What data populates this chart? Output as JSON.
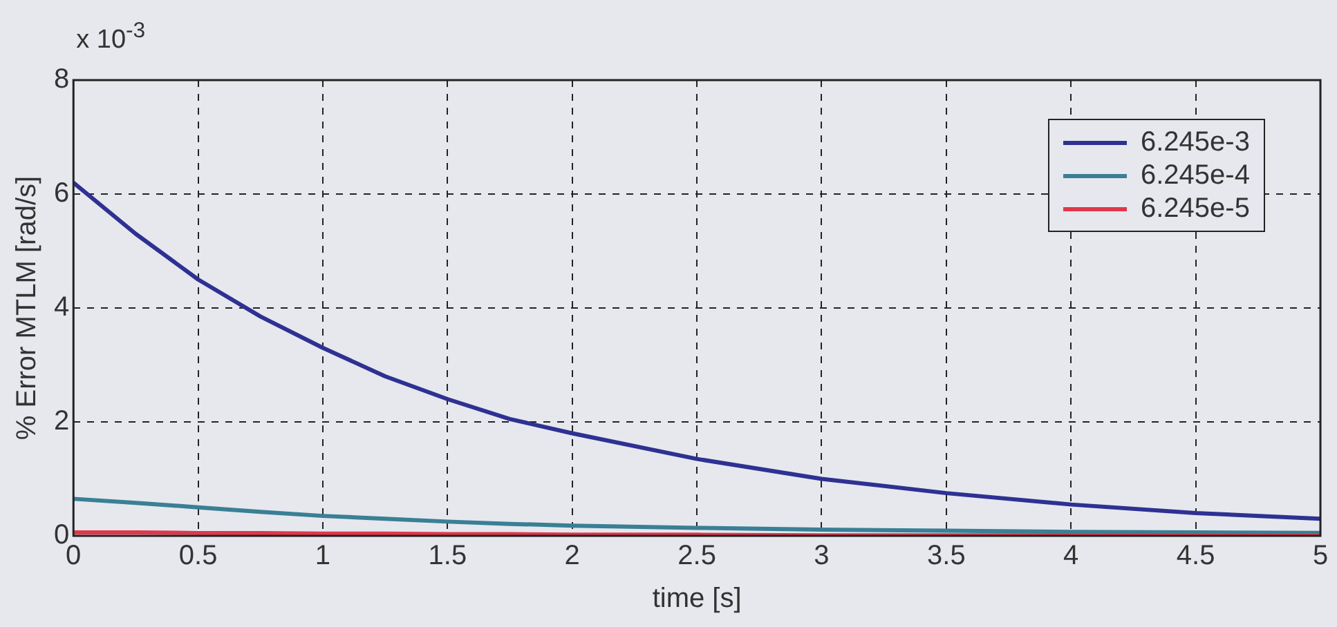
{
  "chart_data": {
    "type": "line",
    "xlabel": "time [s]",
    "ylabel": "% Error MTLM [rad/s]",
    "annotations": [
      "x 10$^{-3}$"
    ],
    "x": [
      0,
      0.25,
      0.5,
      0.75,
      1,
      1.25,
      1.5,
      1.75,
      2,
      2.5,
      3,
      3.5,
      4,
      4.5,
      5
    ],
    "series": [
      {
        "name": "6.245e-3",
        "color": "#2e3192",
        "values": [
          6.2,
          5.3,
          4.5,
          3.85,
          3.3,
          2.8,
          2.4,
          2.05,
          1.8,
          1.35,
          1.0,
          0.75,
          0.55,
          0.4,
          0.3
        ]
      },
      {
        "name": "6.245e-4",
        "color": "#3a7f95",
        "values": [
          0.65,
          0.58,
          0.5,
          0.42,
          0.35,
          0.3,
          0.25,
          0.21,
          0.18,
          0.14,
          0.11,
          0.09,
          0.07,
          0.06,
          0.05
        ]
      },
      {
        "name": "6.245e-5",
        "color": "#e0374a",
        "values": [
          0.06,
          0.06,
          0.05,
          0.05,
          0.04,
          0.04,
          0.03,
          0.03,
          0.02,
          0.02,
          0.01,
          0.01,
          0.01,
          0.01,
          0.01
        ]
      }
    ],
    "xlim": [
      0,
      5
    ],
    "xticks": [
      0,
      0.5,
      1,
      1.5,
      2,
      2.5,
      3,
      3.5,
      4,
      4.5,
      5
    ],
    "ylim": [
      0,
      8
    ],
    "yticks": [
      0,
      2,
      4,
      6,
      8
    ],
    "grid": true,
    "legend": "top right",
    "marker": "none",
    "line_style": "solid"
  }
}
